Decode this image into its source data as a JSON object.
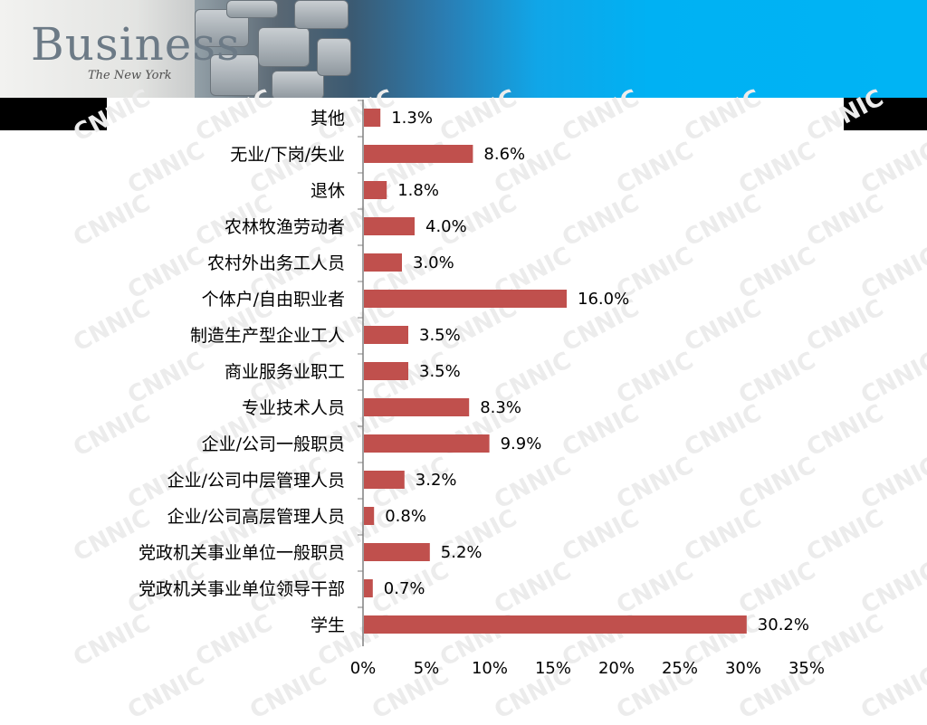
{
  "header": {
    "logo_text": "Business",
    "logo_sub": "The New York"
  },
  "colors": {
    "bar": "#c0504d",
    "axis": "#808080"
  },
  "chart_data": {
    "type": "bar",
    "orientation": "horizontal",
    "categories": [
      "其他",
      "无业/下岗/失业",
      "退休",
      "农林牧渔劳动者",
      "农村外出务工人员",
      "个体户/自由职业者",
      "制造生产型企业工人",
      "商业服务业职工",
      "专业技术人员",
      "企业/公司一般职员",
      "企业/公司中层管理人员",
      "企业/公司高层管理人员",
      "党政机关事业单位一般职员",
      "党政机关事业单位领导干部",
      "学生"
    ],
    "values": [
      1.3,
      8.6,
      1.8,
      4.0,
      3.0,
      16.0,
      3.5,
      3.5,
      8.3,
      9.9,
      3.2,
      0.8,
      5.2,
      0.7,
      30.2
    ],
    "value_labels": [
      "1.3%",
      "8.6%",
      "1.8%",
      "4.0%",
      "3.0%",
      "16.0%",
      "3.5%",
      "3.5%",
      "8.3%",
      "9.9%",
      "3.2%",
      "0.8%",
      "5.2%",
      "0.7%",
      "30.2%"
    ],
    "xlim": [
      0,
      35
    ],
    "xticks": [
      "0%",
      "5%",
      "10%",
      "15%",
      "20%",
      "25%",
      "30%",
      "35%"
    ],
    "xlabel": "",
    "ylabel": "",
    "title": "",
    "grid": false,
    "legend": "none"
  }
}
